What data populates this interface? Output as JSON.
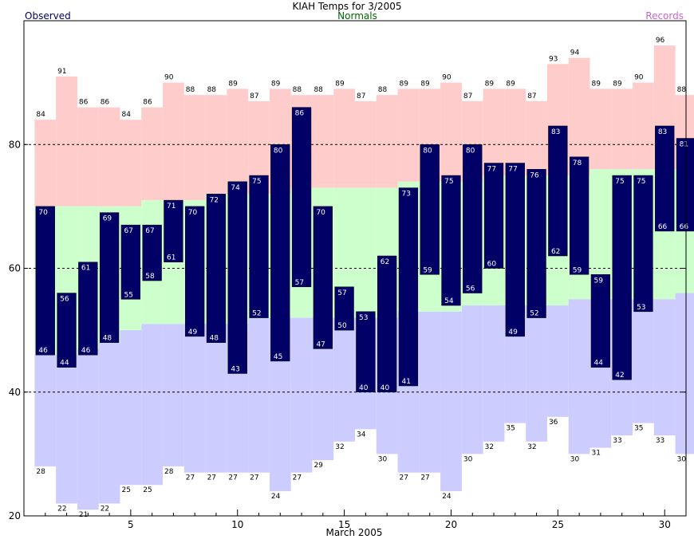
{
  "chart_data": {
    "type": "bar",
    "title": "KIAH Temps for 3/2005",
    "xlabel": "March 2005",
    "ylabel": "",
    "ylim": [
      20,
      100
    ],
    "xlim": [
      0.5,
      31.5
    ],
    "legend": {
      "observed": "Observed",
      "normals": "Normals",
      "records": "Records"
    },
    "colors": {
      "record_band": "#ffcccc",
      "normal_band": "#ccffcc",
      "record_low_band": "#ccccff",
      "observed_bar": "#000066",
      "observed_text": "#000066",
      "normals_text": "#006600",
      "records_text": "#cc66cc"
    },
    "gridlines": [
      40,
      60,
      80
    ],
    "y_ticks": [
      20,
      40,
      60,
      80
    ],
    "x_ticks": [
      5,
      10,
      15,
      20,
      25,
      30
    ],
    "days": [
      1,
      2,
      3,
      4,
      5,
      6,
      7,
      8,
      9,
      10,
      11,
      12,
      13,
      14,
      15,
      16,
      17,
      18,
      19,
      20,
      21,
      22,
      23,
      24,
      25,
      26,
      27,
      28,
      29,
      30,
      31
    ],
    "series": [
      {
        "name": "Record High",
        "values": [
          84,
          91,
          86,
          86,
          84,
          86,
          90,
          88,
          88,
          89,
          87,
          89,
          88,
          88,
          89,
          87,
          88,
          89,
          89,
          90,
          87,
          89,
          89,
          87,
          93,
          94,
          89,
          89,
          90,
          96,
          88
        ]
      },
      {
        "name": "Normal High",
        "values": [
          70,
          70,
          70,
          70,
          70,
          71,
          71,
          71,
          72,
          72,
          72,
          72,
          73,
          73,
          73,
          73,
          73,
          74,
          74,
          74,
          74,
          75,
          75,
          75,
          75,
          75,
          76,
          76,
          76,
          76,
          76
        ]
      },
      {
        "name": "Normal Low",
        "values": [
          46,
          46,
          47,
          48,
          50,
          51,
          51,
          51,
          51,
          51,
          52,
          52,
          52,
          52,
          52,
          52,
          52,
          53,
          53,
          53,
          54,
          54,
          54,
          54,
          54,
          55,
          55,
          55,
          55,
          55,
          56
        ]
      },
      {
        "name": "Record Low",
        "values": [
          28,
          22,
          21,
          22,
          25,
          25,
          28,
          27,
          27,
          27,
          27,
          24,
          27,
          29,
          32,
          34,
          30,
          27,
          27,
          24,
          30,
          32,
          35,
          32,
          36,
          30,
          31,
          33,
          35,
          33,
          30
        ]
      },
      {
        "name": "Observed High",
        "values": [
          70,
          56,
          61,
          69,
          67,
          67,
          71,
          70,
          72,
          74,
          75,
          80,
          86,
          70,
          57,
          53,
          62,
          73,
          80,
          75,
          80,
          77,
          77,
          76,
          83,
          78,
          59,
          75,
          75,
          83,
          81
        ]
      },
      {
        "name": "Observed Low",
        "values": [
          46,
          44,
          46,
          48,
          55,
          58,
          61,
          49,
          48,
          43,
          52,
          45,
          57,
          47,
          50,
          40,
          40,
          41,
          59,
          54,
          56,
          60,
          49,
          52,
          62,
          59,
          44,
          42,
          53,
          66,
          66
        ]
      }
    ]
  }
}
